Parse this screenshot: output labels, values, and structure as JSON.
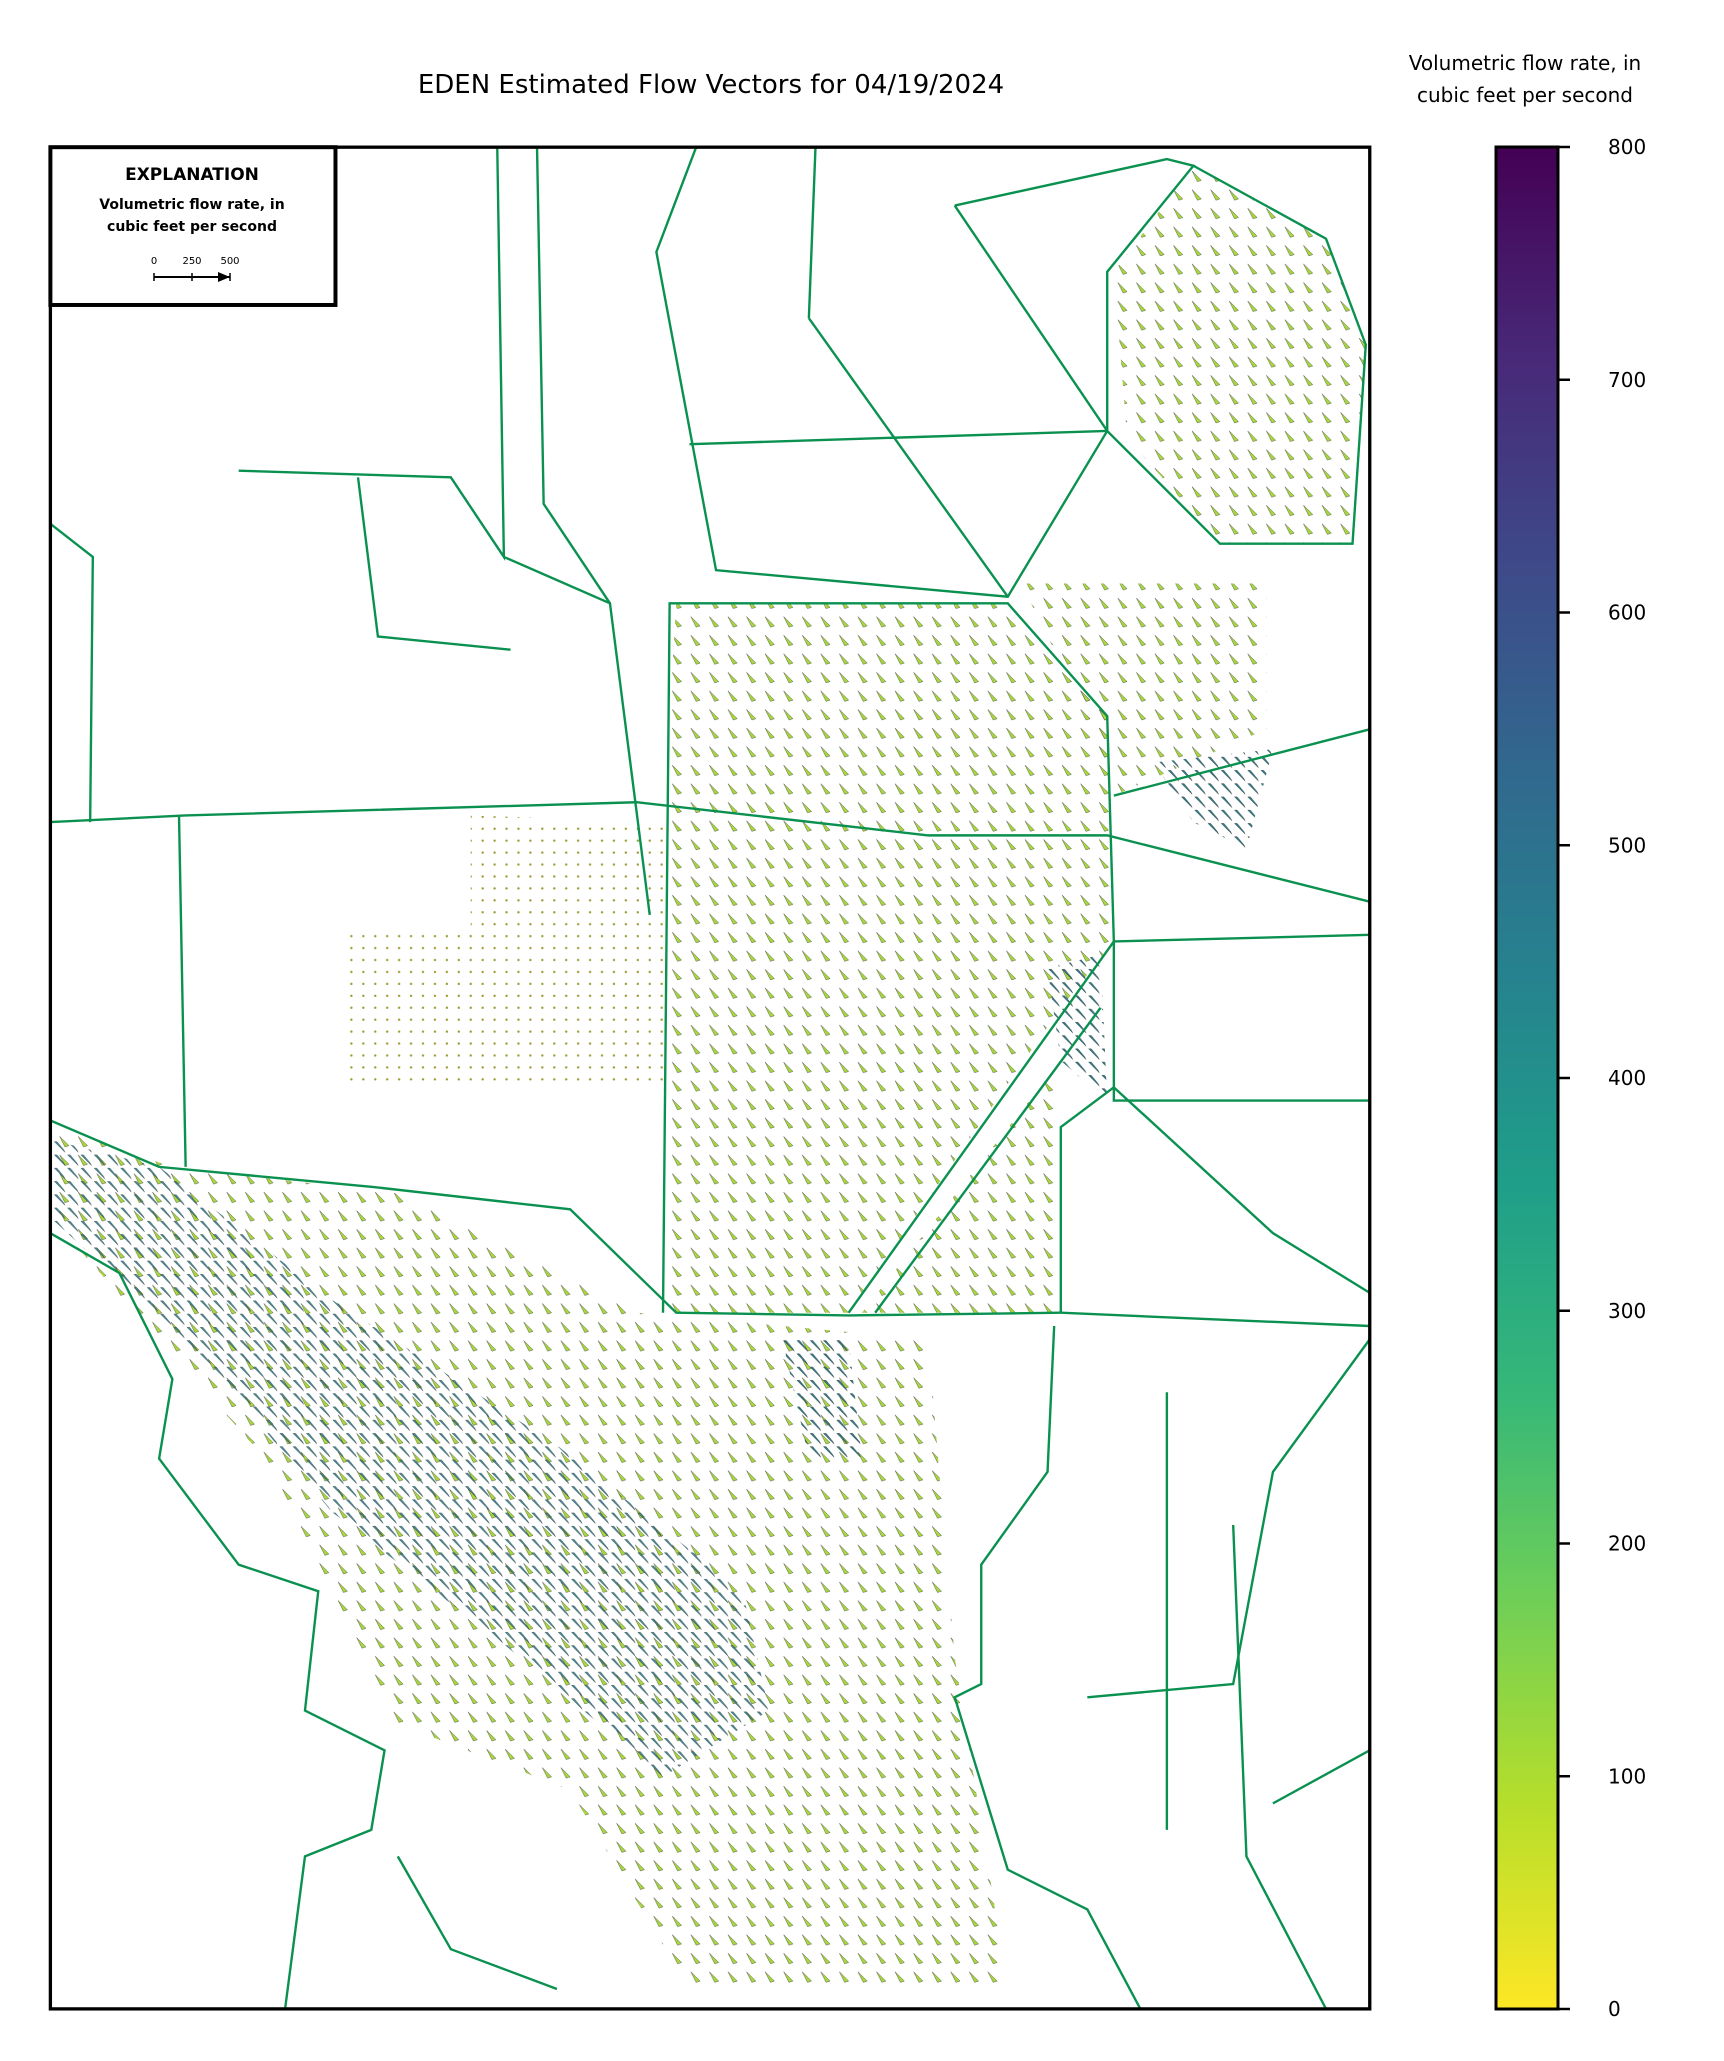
{
  "title": "EDEN Estimated Flow Vectors for 04/19/2024",
  "explanation": {
    "heading": "EXPLANATION",
    "label_line1": "Volumetric flow rate, in",
    "label_line2": "cubic feet per second",
    "scale_ticks": [
      0,
      250,
      500
    ],
    "scale_lim": [
      0,
      500
    ]
  },
  "colorbar": {
    "title_line1": "Volumetric flow rate, in",
    "title_line2": "cubic feet per second",
    "lim": [
      0,
      800
    ],
    "ticks": [
      0,
      100,
      200,
      300,
      400,
      500,
      600,
      700,
      800
    ],
    "colors": [
      "#fde725",
      "#b5de2b",
      "#6ece58",
      "#35b779",
      "#1f9e89",
      "#26828e",
      "#31688e",
      "#3e4989",
      "#482878",
      "#440154"
    ]
  }
}
